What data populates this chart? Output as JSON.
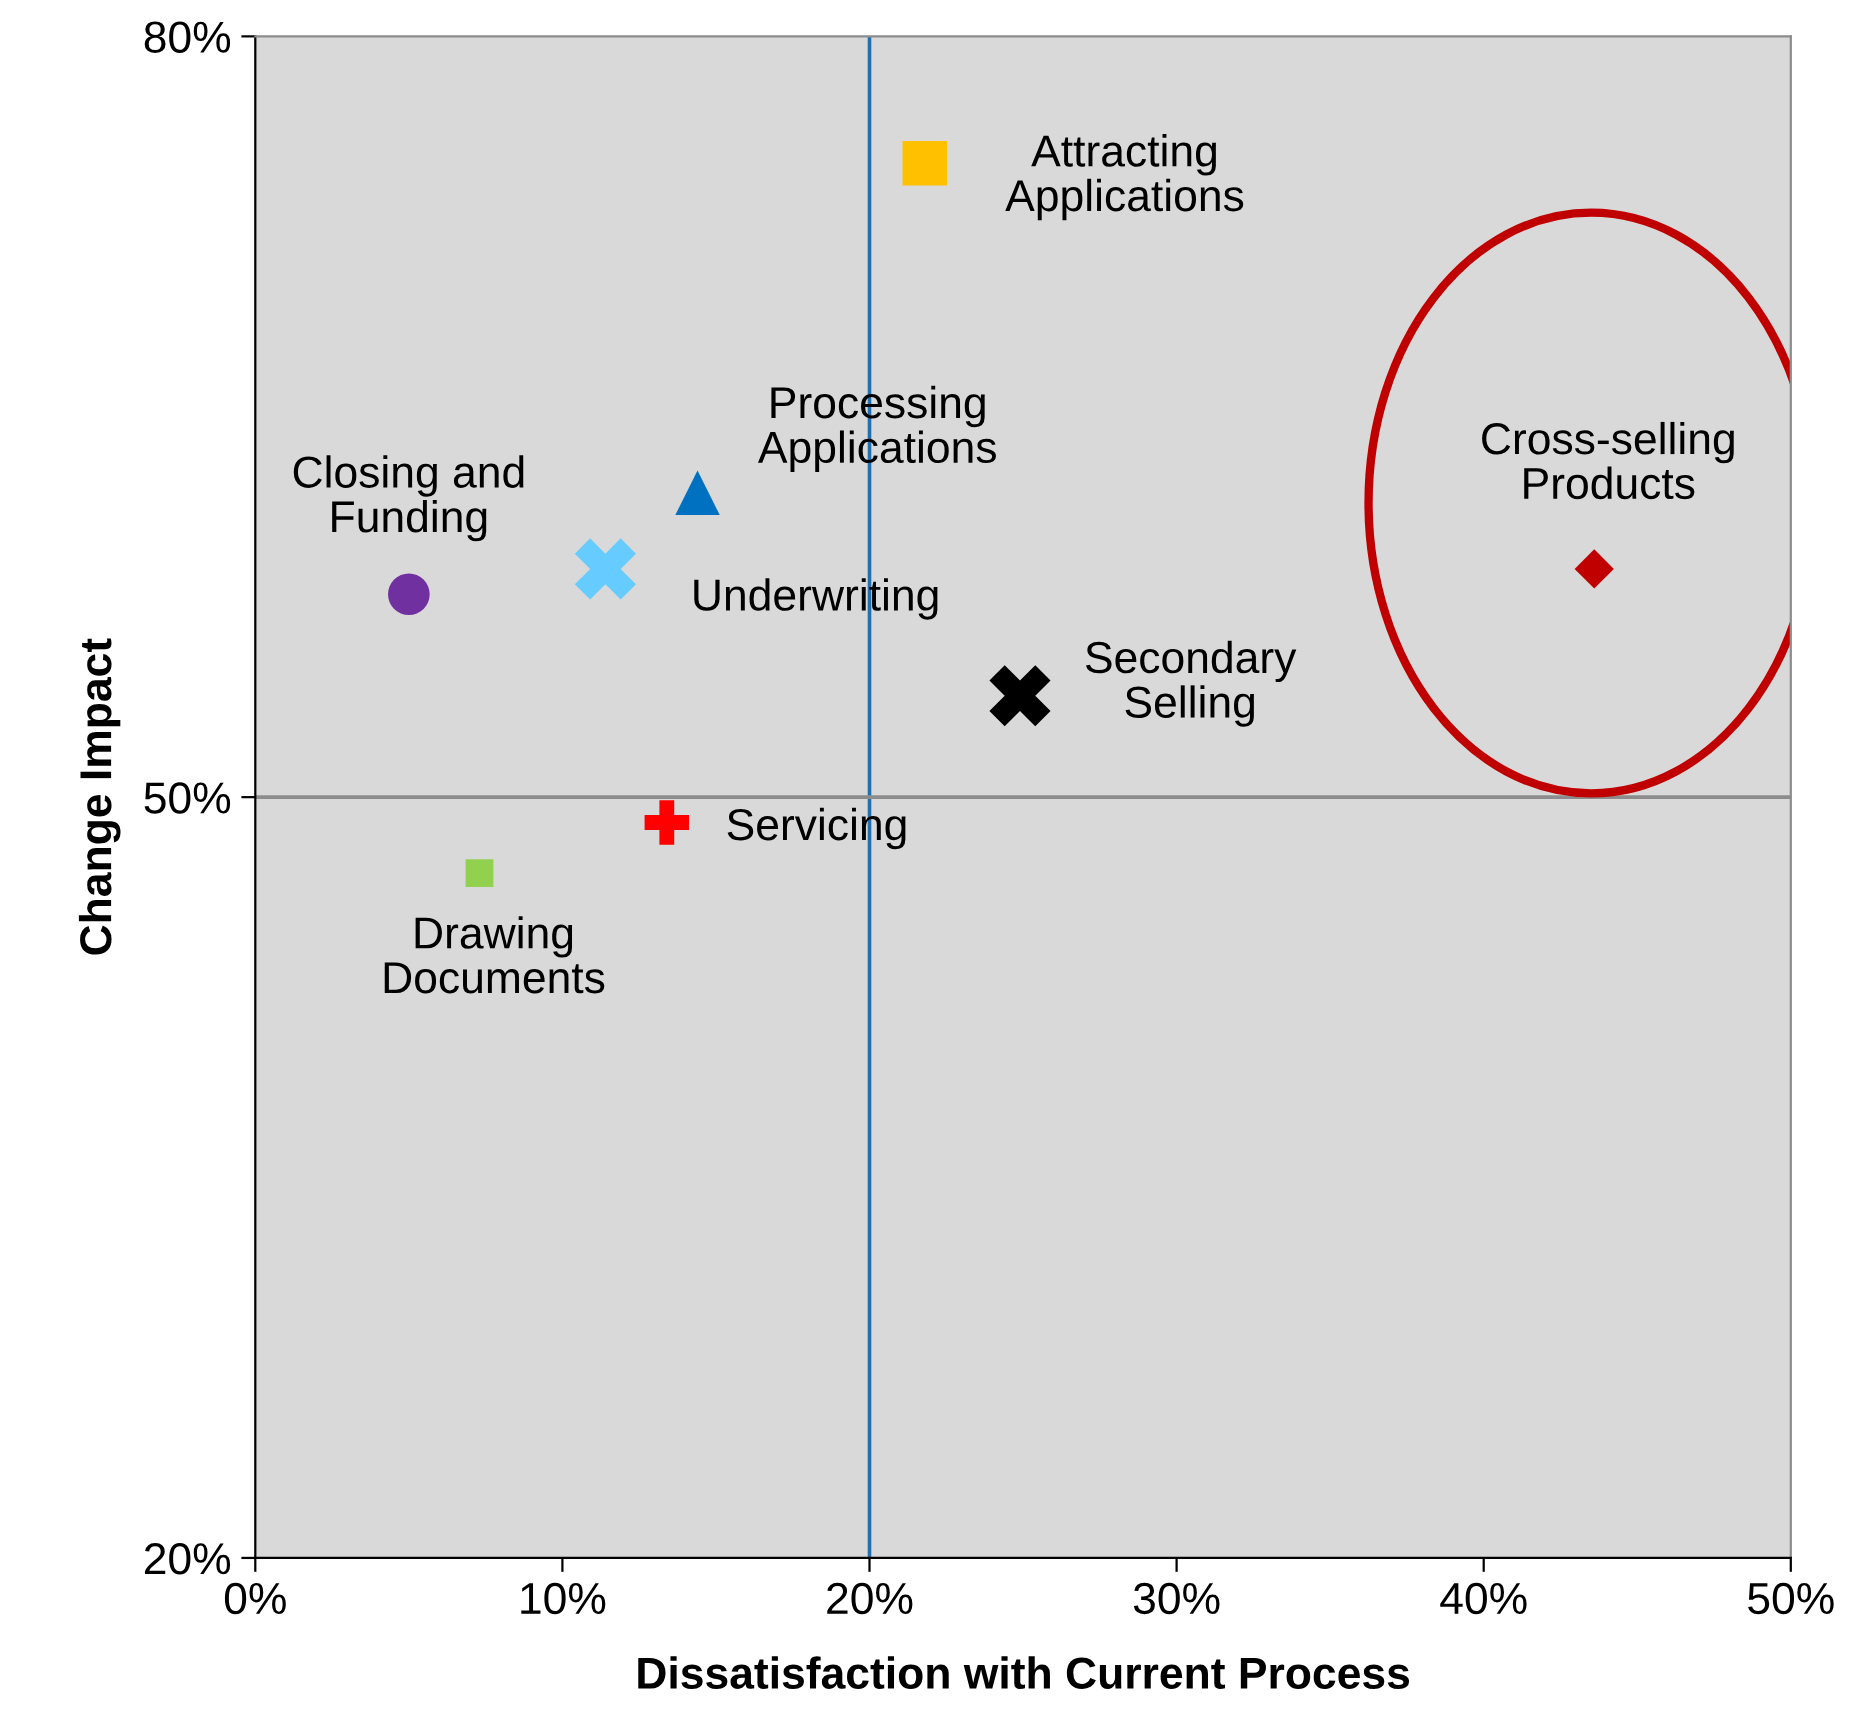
{
  "chart_data": {
    "type": "scatter",
    "xlabel": "Dissatisfaction with Current Process",
    "ylabel": "Change Impact",
    "xlim": [
      0,
      50
    ],
    "ylim": [
      20,
      80
    ],
    "xticks": [
      {
        "value": 0,
        "label": "0%"
      },
      {
        "value": 10,
        "label": "10%"
      },
      {
        "value": 20,
        "label": "20%"
      },
      {
        "value": 30,
        "label": "30%"
      },
      {
        "value": 40,
        "label": "40%"
      },
      {
        "value": 50,
        "label": "50%"
      }
    ],
    "yticks": [
      {
        "value": 20,
        "label": "20%"
      },
      {
        "value": 50,
        "label": "50%"
      },
      {
        "value": 80,
        "label": "80%"
      }
    ],
    "legend": false,
    "ref_lines": [
      {
        "axis": "x",
        "value": 20,
        "color": "#1f6fb2"
      },
      {
        "axis": "y",
        "value": 50,
        "color": "#8c8c8c"
      }
    ],
    "series": [
      {
        "name": "Attracting\nApplications",
        "color": "#ffc000",
        "marker": "square",
        "x": [
          21.8
        ],
        "values": [
          75
        ]
      },
      {
        "name": "Processing\nApplications",
        "color": "#0070c0",
        "marker": "triangle",
        "x": [
          14.4
        ],
        "values": [
          62
        ]
      },
      {
        "name": "Closing and\nFunding",
        "color": "#7030a0",
        "marker": "circle",
        "x": [
          5.0
        ],
        "values": [
          58
        ]
      },
      {
        "name": "Underwriting",
        "color": "#66ccff",
        "marker": "cross",
        "x": [
          11.4
        ],
        "values": [
          59
        ]
      },
      {
        "name": "Secondary\nSelling",
        "color": "#000000",
        "marker": "cross",
        "x": [
          24.9
        ],
        "values": [
          54
        ]
      },
      {
        "name": "Cross-selling\nProducts",
        "color": "#c00000",
        "marker": "diamond",
        "x": [
          43.6
        ],
        "values": [
          59
        ]
      },
      {
        "name": "Servicing",
        "color": "#ff0000",
        "marker": "plus",
        "x": [
          13.4
        ],
        "values": [
          49
        ]
      },
      {
        "name": "Drawing\nDocuments",
        "color": "#92d050",
        "marker": "square",
        "x": [
          7.3
        ],
        "values": [
          47
        ]
      }
    ]
  }
}
